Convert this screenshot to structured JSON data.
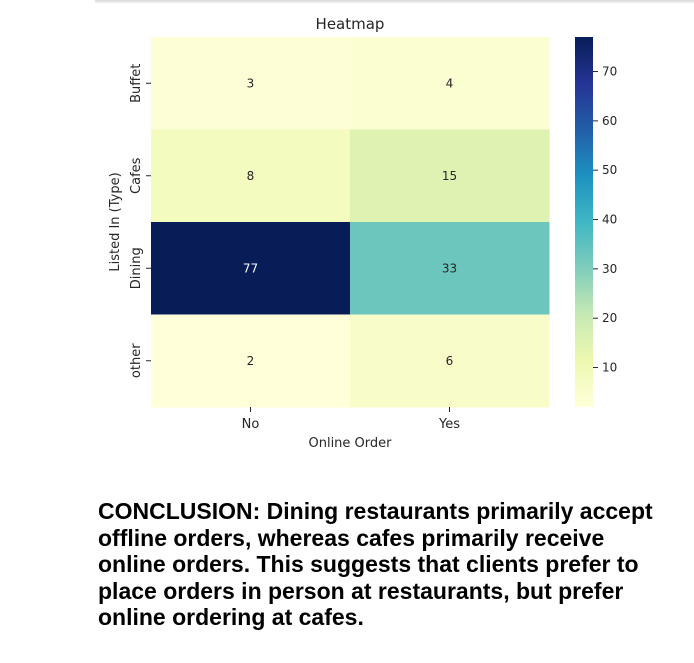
{
  "chart_data": {
    "type": "heatmap",
    "title": "Heatmap",
    "xlabel": "Online Order",
    "ylabel": "Listed In (Type)",
    "x_categories": [
      "No",
      "Yes"
    ],
    "y_categories": [
      "Buffet",
      "Cafes",
      "Dining",
      "other"
    ],
    "values": [
      [
        3,
        4
      ],
      [
        8,
        15
      ],
      [
        77,
        33
      ],
      [
        2,
        6
      ]
    ],
    "colormap": "YlGnBu",
    "colorbar": {
      "range": [
        2,
        77
      ],
      "ticks": [
        10,
        20,
        30,
        40,
        50,
        60,
        70
      ]
    },
    "annotations": true
  },
  "conclusion": "CONCLUSION: Dining restaurants primarily accept offline orders, whereas cafes primarily receive online orders. This suggests that clients prefer to place orders in person at restaurants, but prefer online ordering at cafes."
}
